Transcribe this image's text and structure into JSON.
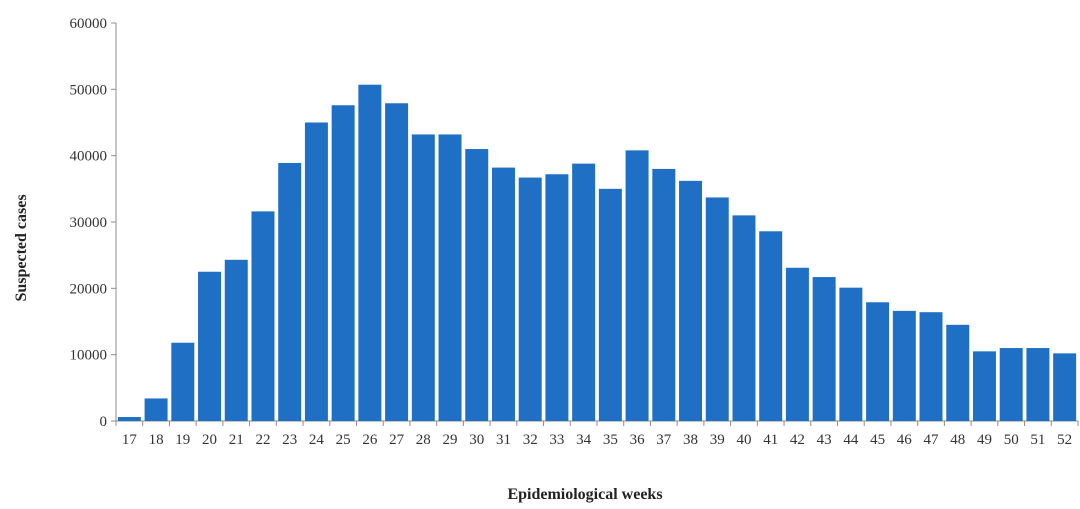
{
  "chart_data": {
    "type": "bar",
    "title": "",
    "xlabel": "Epidemiological weeks",
    "ylabel": "Suspected cases",
    "ylim": [
      0,
      60000
    ],
    "yticks": [
      0,
      10000,
      20000,
      30000,
      40000,
      50000,
      60000
    ],
    "grid": false,
    "legend": "none",
    "bar_color": "#1f6fc5",
    "categories": [
      "17",
      "18",
      "19",
      "20",
      "21",
      "22",
      "23",
      "24",
      "25",
      "26",
      "27",
      "28",
      "29",
      "30",
      "31",
      "32",
      "33",
      "34",
      "35",
      "36",
      "37",
      "38",
      "39",
      "40",
      "41",
      "42",
      "43",
      "44",
      "45",
      "46",
      "47",
      "48",
      "49",
      "50",
      "51",
      "52"
    ],
    "values": [
      600,
      3400,
      11800,
      22500,
      24300,
      31600,
      38900,
      45000,
      47600,
      50700,
      47900,
      43200,
      43200,
      41000,
      38200,
      36700,
      37200,
      38800,
      35000,
      40800,
      38000,
      36200,
      33700,
      31000,
      28600,
      23100,
      21700,
      20100,
      17900,
      16600,
      16400,
      14500,
      10500,
      11000,
      11000,
      10200
    ]
  }
}
